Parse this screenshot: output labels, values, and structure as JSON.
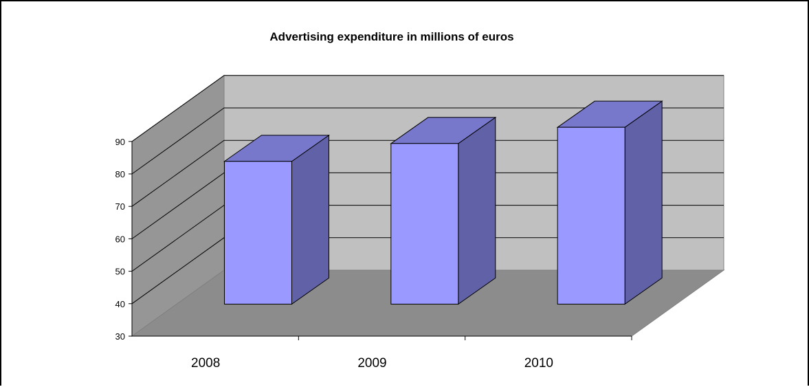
{
  "chart_data": {
    "type": "bar",
    "title": "Advertising expenditure in millions of euros",
    "categories": [
      "2008",
      "2009",
      "2010"
    ],
    "values": [
      74,
      79.5,
      84.5
    ],
    "ylim": [
      30,
      90
    ],
    "yticks": [
      "30",
      "40",
      "50",
      "60",
      "70",
      "80",
      "90"
    ],
    "grid": true,
    "style": "3d-column",
    "colors": {
      "bar_front": "#9999ff",
      "bar_top": "#7777cc",
      "bar_side": "#6161a8",
      "back_wall": "#c0c0c0",
      "side_wall": "#969696",
      "floor": "#8c8c8c"
    }
  }
}
